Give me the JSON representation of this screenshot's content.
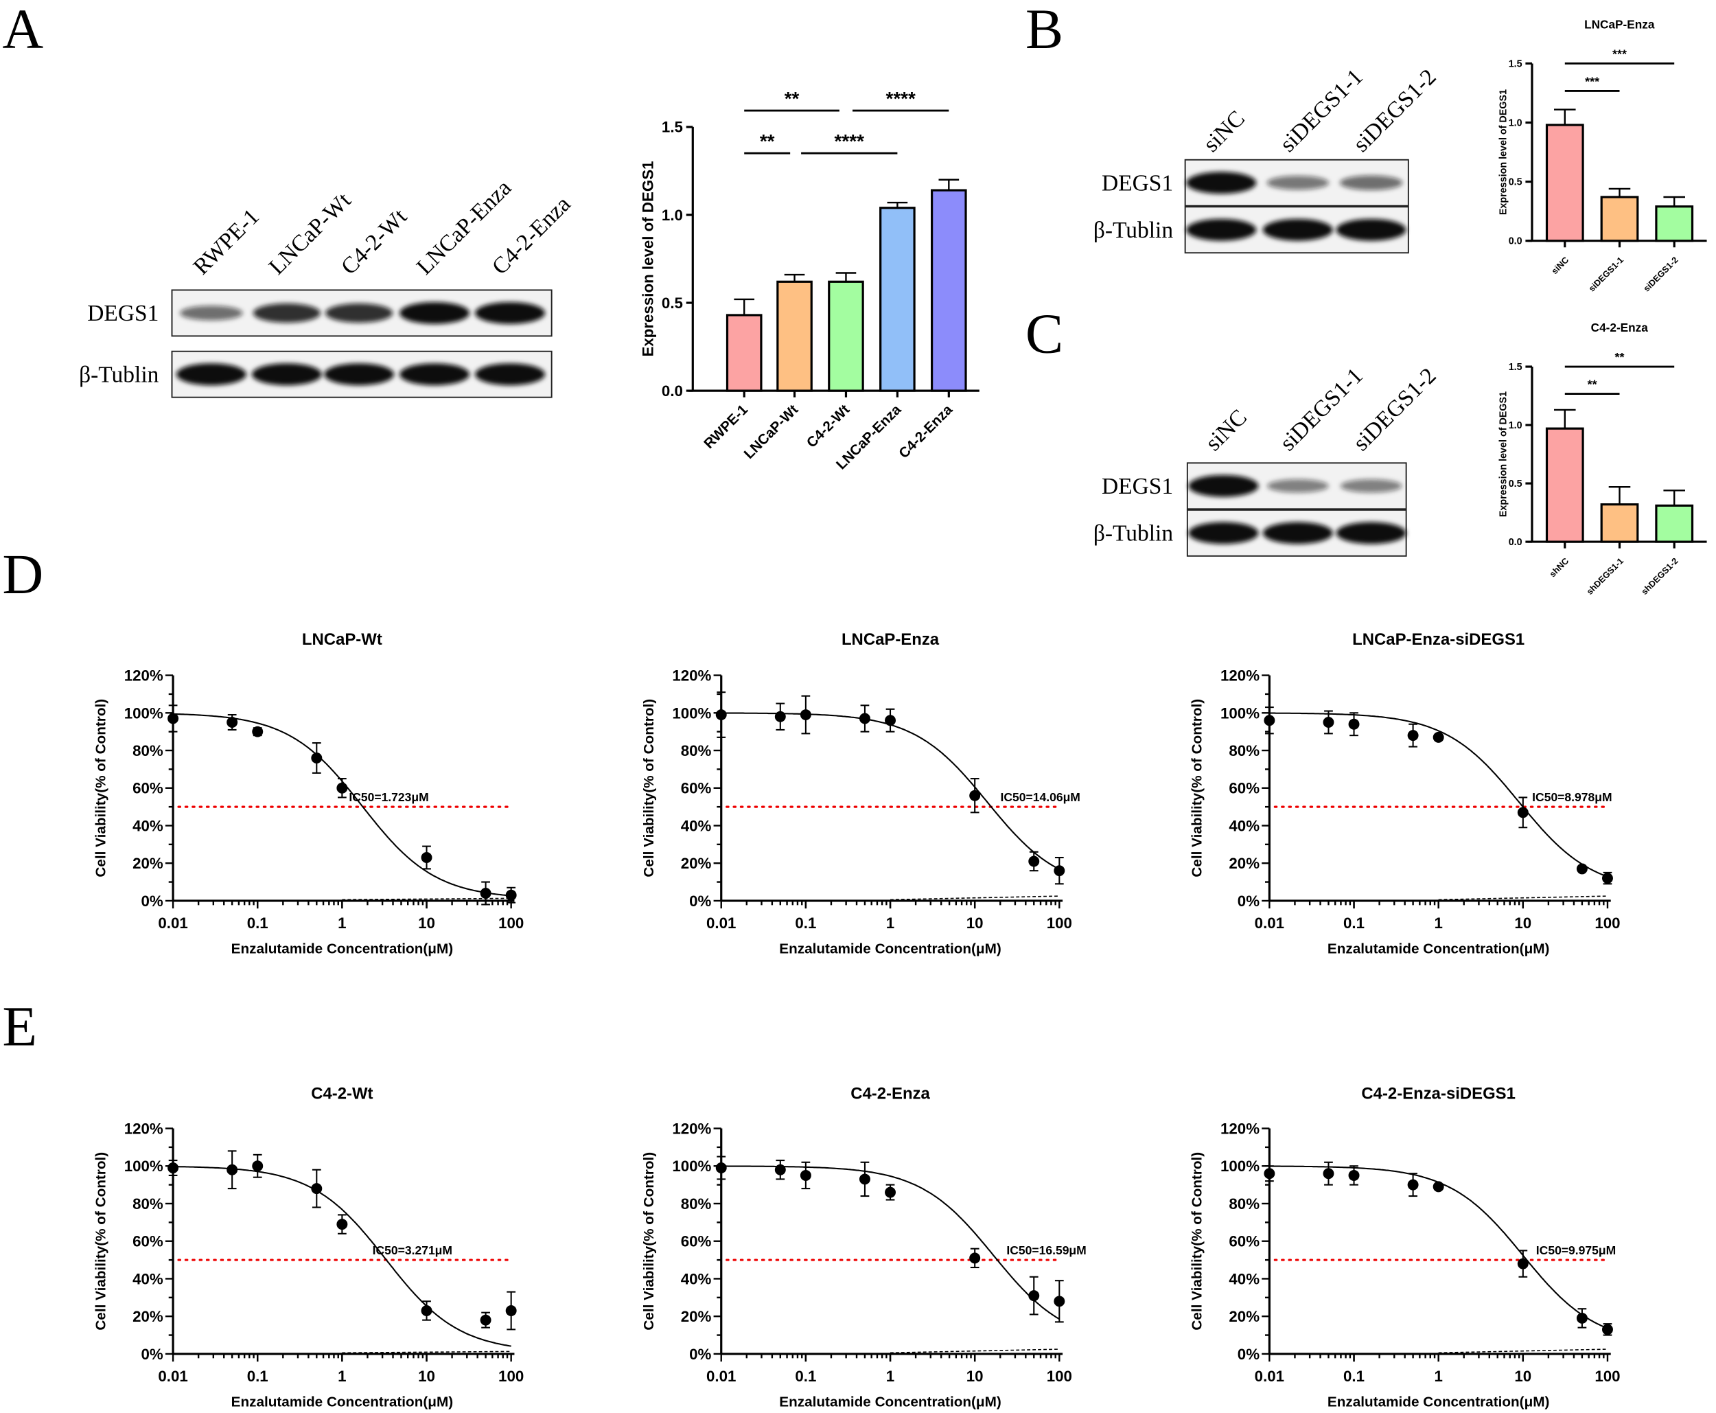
{
  "panel_letters": {
    "a": "A",
    "b": "B",
    "c": "C",
    "d": "D",
    "e": "E"
  },
  "blot_labels": {
    "degs1": "DEGS1",
    "tublin": "β-Tublin"
  },
  "blot_a": {
    "lanes": [
      "RWPE-1",
      "LNCaP-Wt",
      "C4-2-Wt",
      "LNCaP-Enza",
      "C4-2-Enza"
    ],
    "degs1_intensity": [
      0.45,
      0.8,
      0.8,
      1.0,
      1.0
    ],
    "tublin_intensity": [
      1,
      1,
      1,
      1,
      1
    ]
  },
  "blot_b": {
    "lanes": [
      "siNC",
      "siDEGS1-1",
      "siDEGS1-2"
    ],
    "degs1_intensity": [
      1.0,
      0.4,
      0.45
    ],
    "tublin_intensity": [
      1,
      1,
      1
    ]
  },
  "blot_c": {
    "lanes": [
      "siNC",
      "siDEGS1-1",
      "siDEGS1-2"
    ],
    "degs1_intensity": [
      1.0,
      0.35,
      0.35
    ],
    "tublin_intensity": [
      1,
      1,
      1
    ]
  },
  "chart_data": [
    {
      "id": "bar_a",
      "type": "bar",
      "title": "",
      "ylabel": "Expression level of DEGS1",
      "ylim": [
        0,
        1.5
      ],
      "yticks": [
        "0.0",
        "0.5",
        "1.0",
        "1.5"
      ],
      "categories": [
        "RWPE-1",
        "LNCaP-Wt",
        "C4-2-Wt",
        "LNCaP-Enza",
        "C4-2-Enza"
      ],
      "values": [
        0.43,
        0.62,
        0.62,
        1.04,
        1.14
      ],
      "errors": [
        0.09,
        0.04,
        0.05,
        0.03,
        0.06
      ],
      "colors": [
        "#fca3a3",
        "#fec083",
        "#a3fda0",
        "#91bff8",
        "#8c8cfb"
      ],
      "significance": [
        {
          "from": 0,
          "to": 2,
          "label": "**",
          "level": 2
        },
        {
          "from": 2,
          "to": 4,
          "label": "****",
          "level": 2
        },
        {
          "from": 0,
          "to": 1,
          "label": "**",
          "level": 1
        },
        {
          "from": 1,
          "to": 3,
          "label": "****",
          "level": 1
        }
      ]
    },
    {
      "id": "bar_b",
      "type": "bar",
      "title": "LNCaP-Enza",
      "ylabel": "Expression level of DEGS1",
      "ylim": [
        0,
        1.5
      ],
      "yticks": [
        "0.0",
        "0.5",
        "1.0",
        "1.5"
      ],
      "categories": [
        "siNC",
        "siDEGS1-1",
        "siDEGS1-2"
      ],
      "values": [
        0.98,
        0.37,
        0.29
      ],
      "errors": [
        0.13,
        0.07,
        0.08
      ],
      "colors": [
        "#fca3a3",
        "#fec083",
        "#a3fda0"
      ],
      "significance": [
        {
          "from": 0,
          "to": 2,
          "label": "***",
          "level": 2
        },
        {
          "from": 0,
          "to": 1,
          "label": "***",
          "level": 1
        }
      ]
    },
    {
      "id": "bar_c",
      "type": "bar",
      "title": "C4-2-Enza",
      "ylabel": "Expression level of DEGS1",
      "ylim": [
        0,
        1.5
      ],
      "yticks": [
        "0.0",
        "0.5",
        "1.0",
        "1.5"
      ],
      "categories": [
        "shNC",
        "shDEGS1-1",
        "shDEGS1-2"
      ],
      "values": [
        0.97,
        0.32,
        0.31
      ],
      "errors": [
        0.16,
        0.15,
        0.13
      ],
      "colors": [
        "#fca3a3",
        "#fec083",
        "#a3fda0"
      ],
      "significance": [
        {
          "from": 0,
          "to": 2,
          "label": "**",
          "level": 2
        },
        {
          "from": 0,
          "to": 1,
          "label": "**",
          "level": 1
        }
      ]
    },
    {
      "id": "d1",
      "type": "scatter",
      "title": "LNCaP-Wt",
      "xlabel": "Enzalutamide Concentration(μM)",
      "ylabel": "Cell Viability(% of Control)",
      "xscale": "log",
      "xlim": [
        0.01,
        100
      ],
      "ylim": [
        0,
        120
      ],
      "xticks": [
        "0.01",
        "0.1",
        "1",
        "10",
        "100"
      ],
      "yticks": [
        "0%",
        "20%",
        "40%",
        "60%",
        "80%",
        "100%",
        "120%"
      ],
      "x": [
        0.01,
        0.05,
        0.1,
        0.5,
        1,
        10,
        50,
        100
      ],
      "y": [
        97,
        95,
        90,
        76,
        60,
        23,
        4,
        3
      ],
      "errors": [
        7,
        4,
        2,
        8,
        5,
        6,
        6,
        4
      ],
      "ic50": 1.723,
      "ic50_label": "IC50=1.723μM",
      "bottom": 1,
      "reference_line": 50
    },
    {
      "id": "d2",
      "type": "scatter",
      "title": "LNCaP-Enza",
      "xlabel": "Enzalutamide Concentration(μM)",
      "ylabel": "Cell Viability(% of Control)",
      "xscale": "log",
      "xlim": [
        0.01,
        100
      ],
      "ylim": [
        0,
        120
      ],
      "xticks": [
        "0.01",
        "0.1",
        "1",
        "10",
        "100"
      ],
      "yticks": [
        "0%",
        "20%",
        "40%",
        "60%",
        "80%",
        "100%",
        "120%"
      ],
      "x": [
        0.01,
        0.05,
        0.1,
        0.5,
        1,
        10,
        50,
        100
      ],
      "y": [
        99,
        98,
        99,
        97,
        96,
        56,
        21,
        16
      ],
      "errors": [
        12,
        7,
        10,
        7,
        6,
        9,
        5,
        7
      ],
      "ic50": 14.06,
      "ic50_label": "IC50=14.06μM",
      "bottom": 5,
      "reference_line": 50
    },
    {
      "id": "d3",
      "type": "scatter",
      "title": "LNCaP-Enza-siDEGS1",
      "xlabel": "Enzalutamide Concentration(μM)",
      "ylabel": "Cell Viability(% of Control)",
      "xscale": "log",
      "xlim": [
        0.01,
        100
      ],
      "ylim": [
        0,
        120
      ],
      "xticks": [
        "0.01",
        "0.1",
        "1",
        "10",
        "100"
      ],
      "yticks": [
        "0%",
        "20%",
        "40%",
        "60%",
        "80%",
        "100%",
        "120%"
      ],
      "x": [
        0.01,
        0.05,
        0.1,
        0.5,
        1,
        10,
        50,
        100
      ],
      "y": [
        96,
        95,
        94,
        88,
        87,
        47,
        17,
        12
      ],
      "errors": [
        7,
        6,
        6,
        6,
        1,
        8,
        1,
        3
      ],
      "ic50": 8.978,
      "ic50_label": "IC50=8.978μM",
      "bottom": 5,
      "reference_line": 50
    },
    {
      "id": "e1",
      "type": "scatter",
      "title": "C4-2-Wt",
      "xlabel": "Enzalutamide Concentration(μM)",
      "ylabel": "Cell Viability(% of Control)",
      "xscale": "log",
      "xlim": [
        0.01,
        100
      ],
      "ylim": [
        0,
        120
      ],
      "xticks": [
        "0.01",
        "0.1",
        "1",
        "10",
        "100"
      ],
      "yticks": [
        "0%",
        "20%",
        "40%",
        "60%",
        "80%",
        "100%",
        "120%"
      ],
      "x": [
        0.01,
        0.05,
        0.1,
        0.5,
        1,
        10,
        50,
        100
      ],
      "y": [
        99,
        98,
        100,
        88,
        69,
        23,
        18,
        23
      ],
      "errors": [
        4,
        10,
        6,
        10,
        5,
        5,
        4,
        10
      ],
      "ic50": 3.271,
      "ic50_label": "IC50=3.271μM",
      "bottom": 1,
      "reference_line": 50
    },
    {
      "id": "e2",
      "type": "scatter",
      "title": "C4-2-Enza",
      "xlabel": "Enzalutamide Concentration(μM)",
      "ylabel": "Cell Viability(% of Control)",
      "xscale": "log",
      "xlim": [
        0.01,
        100
      ],
      "ylim": [
        0,
        120
      ],
      "xticks": [
        "0.01",
        "0.1",
        "1",
        "10",
        "100"
      ],
      "yticks": [
        "0%",
        "20%",
        "40%",
        "60%",
        "80%",
        "100%",
        "120%"
      ],
      "x": [
        0.01,
        0.05,
        0.1,
        0.5,
        1,
        10,
        50,
        100
      ],
      "y": [
        99,
        98,
        95,
        93,
        86,
        51,
        31,
        28
      ],
      "errors": [
        6,
        5,
        7,
        9,
        4,
        5,
        10,
        11
      ],
      "ic50": 16.59,
      "ic50_label": "IC50=16.59μM",
      "bottom": 5,
      "reference_line": 50
    },
    {
      "id": "e3",
      "type": "scatter",
      "title": "C4-2-Enza-siDEGS1",
      "xlabel": "Enzalutamide Concentration(μM)",
      "ylabel": "Cell Viability(% of Control)",
      "xscale": "log",
      "xlim": [
        0.01,
        100
      ],
      "ylim": [
        0,
        120
      ],
      "xticks": [
        "0.01",
        "0.1",
        "1",
        "10",
        "100"
      ],
      "yticks": [
        "0%",
        "20%",
        "40%",
        "60%",
        "80%",
        "100%",
        "120%"
      ],
      "x": [
        0.01,
        0.05,
        0.1,
        0.5,
        1,
        10,
        50,
        100
      ],
      "y": [
        96,
        96,
        95,
        90,
        89,
        48,
        19,
        13
      ],
      "errors": [
        4,
        6,
        5,
        6,
        1,
        7,
        5,
        3
      ],
      "ic50": 9.975,
      "ic50_label": "IC50=9.975μM",
      "bottom": 5,
      "reference_line": 50
    }
  ]
}
